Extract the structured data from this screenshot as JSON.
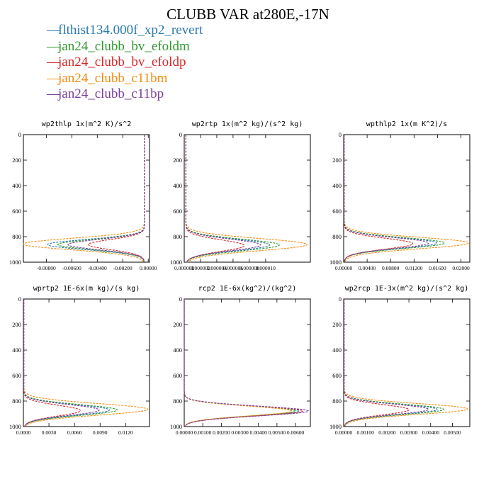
{
  "title": "CLUBB VAR at280E,-17N",
  "legend": [
    {
      "label": "flthist134.000f_xp2_revert",
      "color": "#2a7ab0"
    },
    {
      "label": "jan24_clubb_bv_efoldm",
      "color": "#2e9a2e"
    },
    {
      "label": "jan24_clubb_bv_efoldp",
      "color": "#d62728"
    },
    {
      "label": "jan24_clubb_c11bm",
      "color": "#f28c0f"
    },
    {
      "label": "jan24_clubb_c11bp",
      "color": "#7a3f9d"
    }
  ],
  "chart_data": [
    {
      "type": "line",
      "title": "wp2thlp  1x(m^2 K)/s^2",
      "ylim": [
        1000,
        0
      ],
      "yticks": [
        0,
        200,
        400,
        600,
        800,
        1000
      ],
      "xlim": [
        -0.0098,
        0.0001
      ],
      "xticks": [
        -0.008,
        -0.006,
        -0.004,
        -0.002,
        0.0
      ],
      "xticklabels": [
        "-0.00800",
        "-0.00600",
        "-0.00400",
        "-0.00200",
        "0.00000"
      ],
      "series": [
        {
          "peak": -0.0079,
          "base": -0.0003,
          "center": 862,
          "width": 40
        },
        {
          "peak": -0.0071,
          "base": -0.0003,
          "center": 862,
          "width": 40
        },
        {
          "peak": -0.0047,
          "base": -0.0003,
          "center": 862,
          "width": 40
        },
        {
          "peak": -0.0098,
          "base": -0.0003,
          "center": 858,
          "width": 45
        },
        {
          "peak": -0.0063,
          "base": -0.0003,
          "center": 862,
          "width": 40
        }
      ]
    },
    {
      "type": "line",
      "title": "wp2rtp  1x(m^2 kg)/(s^2 kg)",
      "ylim": [
        1000,
        0
      ],
      "yticks": [
        0,
        200,
        400,
        600,
        800,
        1000
      ],
      "xlim": [
        0.0,
        1.55e-05
      ],
      "xticks": [
        0.0,
        2e-06,
        4e-06,
        6e-06,
        8e-06,
        1e-05
      ],
      "xticklabels": [
        "0.000000",
        "0.000002",
        "0.000004",
        "0.000006",
        "0.000008",
        "0.000010"
      ],
      "series": [
        {
          "peak": 1.05e-05,
          "base": 2e-07,
          "center": 865,
          "width": 45
        },
        {
          "peak": 1.17e-05,
          "base": 2e-07,
          "center": 865,
          "width": 45
        },
        {
          "peak": 7.4e-06,
          "base": 2e-07,
          "center": 870,
          "width": 45
        },
        {
          "peak": 1.51e-05,
          "base": 2e-07,
          "center": 862,
          "width": 48
        },
        {
          "peak": 9.4e-06,
          "base": 2e-07,
          "center": 865,
          "width": 45
        }
      ]
    },
    {
      "type": "line",
      "title": "wpthlp2  1x(m K^2)/s",
      "ylim": [
        1000,
        0
      ],
      "yticks": [
        0,
        200,
        400,
        600,
        800,
        1000
      ],
      "xlim": [
        0.0,
        0.0215
      ],
      "xticks": [
        0.0,
        0.004,
        0.008,
        0.012,
        0.016,
        0.02
      ],
      "xticklabels": [
        "0.00000",
        "0.00400",
        "0.00800",
        "0.01200",
        "0.01600",
        "0.02000"
      ],
      "series": [
        {
          "peak": 0.0159,
          "base": 0.0001,
          "center": 850,
          "width": 42
        },
        {
          "peak": 0.0172,
          "base": 0.0001,
          "center": 850,
          "width": 42
        },
        {
          "peak": 0.0118,
          "base": 0.0001,
          "center": 855,
          "width": 42
        },
        {
          "peak": 0.0213,
          "base": 0.0001,
          "center": 850,
          "width": 45
        },
        {
          "peak": 0.0145,
          "base": 0.0001,
          "center": 850,
          "width": 42
        }
      ]
    },
    {
      "type": "line",
      "title": "wprtp2  1E-6x(m kg)/(s kg)",
      "ylim": [
        1000,
        0
      ],
      "yticks": [
        0,
        200,
        400,
        600,
        800,
        1000
      ],
      "xlim": [
        0.0,
        0.0148
      ],
      "xticks": [
        0.0,
        0.003,
        0.006,
        0.009,
        0.012
      ],
      "xticklabels": [
        "0.0000",
        "0.0030",
        "0.0060",
        "0.0090",
        "0.0120"
      ],
      "series": [
        {
          "peak": 0.0101,
          "base": 5e-05,
          "center": 870,
          "width": 42
        },
        {
          "peak": 0.011,
          "base": 5e-05,
          "center": 870,
          "width": 42
        },
        {
          "peak": 0.0067,
          "base": 5e-05,
          "center": 875,
          "width": 42
        },
        {
          "peak": 0.0146,
          "base": 5e-05,
          "center": 865,
          "width": 45
        },
        {
          "peak": 0.0089,
          "base": 5e-05,
          "center": 870,
          "width": 42
        }
      ]
    },
    {
      "type": "line",
      "title": "rcp2  1E-6x(kg^2)/(kg^2)",
      "ylim": [
        1000,
        0
      ],
      "yticks": [
        0,
        200,
        400,
        600,
        800,
        1000
      ],
      "xlim": [
        0.0,
        0.0068
      ],
      "xticks": [
        0.0,
        0.001,
        0.002,
        0.003,
        0.004,
        0.005,
        0.006
      ],
      "xticklabels": [
        "0.00000",
        "0.00100",
        "0.00200",
        "0.00300",
        "0.00400",
        "0.00500",
        "0.00600"
      ],
      "series": [
        {
          "peak": 0.0062,
          "base": 0.0,
          "center": 878,
          "width": 38
        },
        {
          "peak": 0.006,
          "base": 0.0,
          "center": 878,
          "width": 38
        },
        {
          "peak": 0.0064,
          "base": 0.0,
          "center": 878,
          "width": 38
        },
        {
          "peak": 0.0058,
          "base": 0.0,
          "center": 878,
          "width": 38
        },
        {
          "peak": 0.0067,
          "base": 0.0,
          "center": 878,
          "width": 38
        }
      ]
    },
    {
      "type": "line",
      "title": "wp2rcp  1E-3x(m^2 kg)/(s^2 kg)",
      "ylim": [
        1000,
        0
      ],
      "yticks": [
        0,
        200,
        400,
        600,
        800,
        1000
      ],
      "xlim": [
        0.0,
        0.0058
      ],
      "xticks": [
        0.0,
        0.001,
        0.002,
        0.003,
        0.004,
        0.005
      ],
      "xticklabels": [
        "0.00000",
        "0.00100",
        "0.00200",
        "0.00300",
        "0.00400",
        "0.00500"
      ],
      "series": [
        {
          "peak": 0.0043,
          "base": 2e-05,
          "center": 865,
          "width": 40
        },
        {
          "peak": 0.0046,
          "base": 2e-05,
          "center": 865,
          "width": 40
        },
        {
          "peak": 0.003,
          "base": 2e-05,
          "center": 868,
          "width": 40
        },
        {
          "peak": 0.0057,
          "base": 2e-05,
          "center": 862,
          "width": 42
        },
        {
          "peak": 0.0039,
          "base": 2e-05,
          "center": 865,
          "width": 40
        }
      ]
    }
  ]
}
